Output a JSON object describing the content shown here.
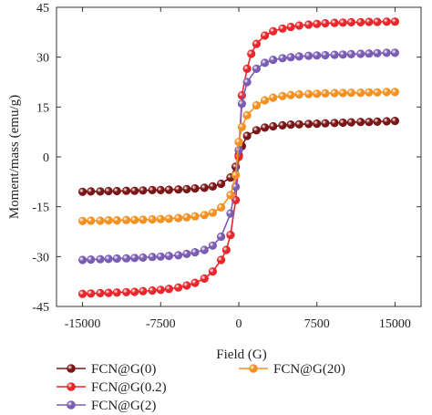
{
  "chart_data": {
    "type": "scatter",
    "title": "",
    "xlabel": "Field (G)",
    "ylabel": "Moment/mass (emu/g)",
    "xlim": [
      -17500,
      17500
    ],
    "ylim": [
      -45,
      45
    ],
    "xticks": [
      -15000,
      -7500,
      0,
      7500,
      15000
    ],
    "yticks": [
      -45,
      -30,
      -15,
      0,
      15,
      30,
      45
    ],
    "xtick_labels": [
      "-15000",
      "-7500",
      "0",
      "7500",
      "15000"
    ],
    "ytick_labels": [
      "-45",
      "-30",
      "-15",
      "0",
      "15",
      "30",
      "45"
    ],
    "grid": false,
    "legend_position": "bottom",
    "series": [
      {
        "name": "FCN@G(0)",
        "color": "#7a1618",
        "points": [
          [
            -15000,
            -10.5
          ],
          [
            -14200,
            -10.4
          ],
          [
            -13300,
            -10.4
          ],
          [
            -12500,
            -10.3
          ],
          [
            -11700,
            -10.3
          ],
          [
            -10800,
            -10.2
          ],
          [
            -10000,
            -10.2
          ],
          [
            -9200,
            -10.1
          ],
          [
            -8300,
            -10.0
          ],
          [
            -7500,
            -10.0
          ],
          [
            -6700,
            -9.9
          ],
          [
            -5800,
            -9.8
          ],
          [
            -5000,
            -9.7
          ],
          [
            -4200,
            -9.5
          ],
          [
            -3300,
            -9.3
          ],
          [
            -2500,
            -8.9
          ],
          [
            -1700,
            -8.1
          ],
          [
            -800,
            -6.2
          ],
          [
            -300,
            -3.0
          ],
          [
            0,
            0.5
          ],
          [
            300,
            3.2
          ],
          [
            800,
            6.3
          ],
          [
            1700,
            8.0
          ],
          [
            2500,
            8.8
          ],
          [
            3300,
            9.2
          ],
          [
            4200,
            9.5
          ],
          [
            5000,
            9.7
          ],
          [
            5800,
            9.8
          ],
          [
            6700,
            9.9
          ],
          [
            7500,
            10.0
          ],
          [
            8300,
            10.1
          ],
          [
            9200,
            10.2
          ],
          [
            10000,
            10.3
          ],
          [
            10800,
            10.4
          ],
          [
            11700,
            10.5
          ],
          [
            12500,
            10.5
          ],
          [
            13300,
            10.6
          ],
          [
            14200,
            10.7
          ],
          [
            15000,
            10.8
          ]
        ]
      },
      {
        "name": "FCN@G(0.2)",
        "color": "#e8262b",
        "points": [
          [
            -15000,
            -41.2
          ],
          [
            -14200,
            -41.1
          ],
          [
            -13300,
            -41.0
          ],
          [
            -12500,
            -40.9
          ],
          [
            -11700,
            -40.8
          ],
          [
            -10800,
            -40.7
          ],
          [
            -10000,
            -40.6
          ],
          [
            -9200,
            -40.4
          ],
          [
            -8300,
            -40.2
          ],
          [
            -7500,
            -40.0
          ],
          [
            -6700,
            -39.7
          ],
          [
            -5800,
            -39.3
          ],
          [
            -5000,
            -38.7
          ],
          [
            -4200,
            -37.9
          ],
          [
            -3300,
            -36.6
          ],
          [
            -2500,
            -34.5
          ],
          [
            -1700,
            -31.0
          ],
          [
            -1200,
            -28.0
          ],
          [
            -800,
            -23.5
          ],
          [
            -300,
            -13.0
          ],
          [
            0,
            0.0
          ],
          [
            300,
            18.5
          ],
          [
            800,
            26.5
          ],
          [
            1200,
            31.0
          ],
          [
            1700,
            34.0
          ],
          [
            2500,
            36.5
          ],
          [
            3300,
            37.8
          ],
          [
            4200,
            38.6
          ],
          [
            5000,
            39.1
          ],
          [
            5800,
            39.5
          ],
          [
            6700,
            39.8
          ],
          [
            7500,
            40.0
          ],
          [
            8300,
            40.2
          ],
          [
            9200,
            40.3
          ],
          [
            10000,
            40.4
          ],
          [
            10800,
            40.5
          ],
          [
            11700,
            40.5
          ],
          [
            12500,
            40.6
          ],
          [
            13300,
            40.6
          ],
          [
            14200,
            40.7
          ],
          [
            15000,
            40.7
          ]
        ]
      },
      {
        "name": "FCN@G(2)",
        "color": "#7b5cb3",
        "points": [
          [
            -15000,
            -31.0
          ],
          [
            -14200,
            -30.9
          ],
          [
            -13300,
            -30.8
          ],
          [
            -12500,
            -30.7
          ],
          [
            -11700,
            -30.6
          ],
          [
            -10800,
            -30.5
          ],
          [
            -10000,
            -30.4
          ],
          [
            -9200,
            -30.3
          ],
          [
            -8300,
            -30.1
          ],
          [
            -7500,
            -30.0
          ],
          [
            -6700,
            -29.8
          ],
          [
            -5800,
            -29.6
          ],
          [
            -5000,
            -29.2
          ],
          [
            -4200,
            -28.7
          ],
          [
            -3300,
            -28.0
          ],
          [
            -2500,
            -26.7
          ],
          [
            -1700,
            -24.0
          ],
          [
            -800,
            -17.0
          ],
          [
            -300,
            -9.0
          ],
          [
            0,
            2.0
          ],
          [
            300,
            16.0
          ],
          [
            800,
            22.5
          ],
          [
            1700,
            26.5
          ],
          [
            2500,
            28.3
          ],
          [
            3300,
            29.2
          ],
          [
            4200,
            29.7
          ],
          [
            5000,
            30.0
          ],
          [
            5800,
            30.2
          ],
          [
            6700,
            30.4
          ],
          [
            7500,
            30.5
          ],
          [
            8300,
            30.6
          ],
          [
            9200,
            30.7
          ],
          [
            10000,
            30.8
          ],
          [
            10800,
            30.9
          ],
          [
            11700,
            31.0
          ],
          [
            12500,
            31.1
          ],
          [
            13300,
            31.2
          ],
          [
            14200,
            31.3
          ],
          [
            15000,
            31.3
          ]
        ]
      },
      {
        "name": "FCN@G(20)",
        "color": "#f29121",
        "points": [
          [
            -15000,
            -19.3
          ],
          [
            -14200,
            -19.2
          ],
          [
            -13300,
            -19.2
          ],
          [
            -12500,
            -19.1
          ],
          [
            -11700,
            -19.1
          ],
          [
            -10800,
            -19.0
          ],
          [
            -10000,
            -19.0
          ],
          [
            -9200,
            -18.9
          ],
          [
            -8300,
            -18.8
          ],
          [
            -7500,
            -18.7
          ],
          [
            -6700,
            -18.6
          ],
          [
            -5800,
            -18.4
          ],
          [
            -5000,
            -18.2
          ],
          [
            -4200,
            -17.9
          ],
          [
            -3300,
            -17.5
          ],
          [
            -2500,
            -16.8
          ],
          [
            -1700,
            -15.2
          ],
          [
            -800,
            -11.5
          ],
          [
            -300,
            -5.5
          ],
          [
            0,
            4.5
          ],
          [
            300,
            9.0
          ],
          [
            800,
            12.5
          ],
          [
            1700,
            15.5
          ],
          [
            2500,
            17.0
          ],
          [
            3300,
            17.8
          ],
          [
            4200,
            18.3
          ],
          [
            5000,
            18.6
          ],
          [
            5800,
            18.8
          ],
          [
            6700,
            18.9
          ],
          [
            7500,
            19.0
          ],
          [
            8300,
            19.1
          ],
          [
            9200,
            19.2
          ],
          [
            10000,
            19.2
          ],
          [
            10800,
            19.3
          ],
          [
            11700,
            19.3
          ],
          [
            12500,
            19.4
          ],
          [
            13300,
            19.4
          ],
          [
            14200,
            19.5
          ],
          [
            15000,
            19.5
          ]
        ]
      }
    ]
  }
}
